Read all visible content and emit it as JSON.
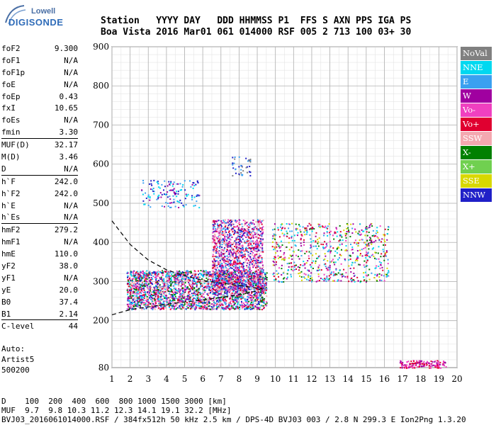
{
  "logo": {
    "line1": "Lowell",
    "line2": "DIGISONDE"
  },
  "header": {
    "line1": "Station   YYYY DAY   DDD HHMMSS P1  FFS S AXN PPS IGA PS",
    "line2": "Boa Vista 2016 Mar01 061 014000 RSF 005 2 713 100 03+ 30"
  },
  "params": [
    {
      "label": "foF2",
      "value": "9.300"
    },
    {
      "label": "foF1",
      "value": "N/A"
    },
    {
      "label": "foF1p",
      "value": "N/A"
    },
    {
      "label": "foE",
      "value": "N/A"
    },
    {
      "label": "foEp",
      "value": "0.43"
    },
    {
      "label": "fxI",
      "value": "10.65"
    },
    {
      "label": "foEs",
      "value": "N/A"
    },
    {
      "label": "fmin",
      "value": "3.30",
      "sep_after": true
    },
    {
      "label": "MUF(D)",
      "value": "32.17"
    },
    {
      "label": "M(D)",
      "value": "3.46"
    },
    {
      "label": "D",
      "value": "N/A",
      "sep_after": true
    },
    {
      "label": "h`F",
      "value": "242.0"
    },
    {
      "label": "h`F2",
      "value": "242.0"
    },
    {
      "label": "h`E",
      "value": "N/A"
    },
    {
      "label": "h`Es",
      "value": "N/A",
      "sep_after": true
    },
    {
      "label": "hmF2",
      "value": "279.2"
    },
    {
      "label": "hmF1",
      "value": "N/A"
    },
    {
      "label": "hmE",
      "value": "110.0"
    },
    {
      "label": "yF2",
      "value": "38.0"
    },
    {
      "label": "yF1",
      "value": "N/A"
    },
    {
      "label": "yE",
      "value": "20.0"
    },
    {
      "label": "B0",
      "value": "37.4"
    },
    {
      "label": "B1",
      "value": "2.14",
      "sep_after": true
    },
    {
      "label": "C-level",
      "value": "44",
      "sep_after": true
    }
  ],
  "auto": {
    "line1": "Auto:",
    "line2": "Artist5",
    "line3": "500200"
  },
  "legend": [
    {
      "label": "NoVal",
      "color": "#808080"
    },
    {
      "label": "NNE",
      "color": "#00d8f0"
    },
    {
      "label": "E",
      "color": "#3aa0f0"
    },
    {
      "label": "W",
      "color": "#a000a0"
    },
    {
      "label": "Vo-",
      "color": "#f040c0"
    },
    {
      "label": "Vo+",
      "color": "#e00030"
    },
    {
      "label": "SSW",
      "color": "#f4a8b0"
    },
    {
      "label": "X-",
      "color": "#008000"
    },
    {
      "label": "X+",
      "color": "#70d050"
    },
    {
      "label": "SSE",
      "color": "#d8d800"
    },
    {
      "label": "NNW",
      "color": "#2020c8"
    }
  ],
  "footer": {
    "line1": "D    100  200  400  600  800 1000 1500 3000 [km]",
    "line2": "MUF  9.7  9.8 10.3 11.2 12.3 14.1 19.1 32.2 [MHz]",
    "line3": "BVJ03_2016061014000.RSF / 384fx512h 50 kHz 2.5 km / DPS-4D BVJ03 003 / 2.8 N 299.3 E Ion2Png 1.3.20"
  },
  "chart_data": {
    "type": "scatter",
    "xlim": [
      1,
      20
    ],
    "ylim": [
      80,
      900
    ],
    "x_ticks": [
      1,
      2,
      3,
      4,
      5,
      6,
      7,
      8,
      9,
      10,
      11,
      12,
      13,
      14,
      15,
      16,
      17,
      18,
      19,
      20
    ],
    "y_ticks": [
      80,
      200,
      300,
      400,
      500,
      600,
      700,
      800,
      900
    ],
    "grid": true,
    "legend_position": "right",
    "traces": [
      {
        "name": "hF2 trace (dashed)",
        "x": [
          1.0,
          2.0,
          4.0,
          6.0,
          8.0,
          9.0,
          9.3
        ],
        "y": [
          215,
          228,
          242,
          253,
          266,
          276,
          285
        ]
      },
      {
        "name": "leading edge (dashed)",
        "x": [
          1.0,
          2.0,
          3.0,
          4.0,
          5.0,
          6.0,
          7.0,
          8.0,
          9.0,
          9.3
        ],
        "y": [
          455,
          395,
          355,
          330,
          315,
          303,
          296,
          290,
          283,
          280
        ]
      }
    ],
    "echo_clusters": [
      {
        "name": "F2 main",
        "x_range": [
          1.8,
          9.5
        ],
        "y_range": [
          230,
          330
        ]
      },
      {
        "name": "F2 spread",
        "x_range": [
          6.5,
          9.3
        ],
        "y_range": [
          280,
          460
        ]
      },
      {
        "name": "second hop",
        "x_range": [
          2.6,
          5.8
        ],
        "y_range": [
          490,
          560
        ]
      },
      {
        "name": "upper",
        "x_range": [
          7.6,
          8.6
        ],
        "y_range": [
          570,
          620
        ]
      },
      {
        "name": "X/O high",
        "x_range": [
          9.8,
          16.2
        ],
        "y_range": [
          300,
          450
        ]
      },
      {
        "name": "low sporadic",
        "x_range": [
          16.8,
          19.4
        ],
        "y_range": [
          80,
          100
        ]
      }
    ]
  }
}
